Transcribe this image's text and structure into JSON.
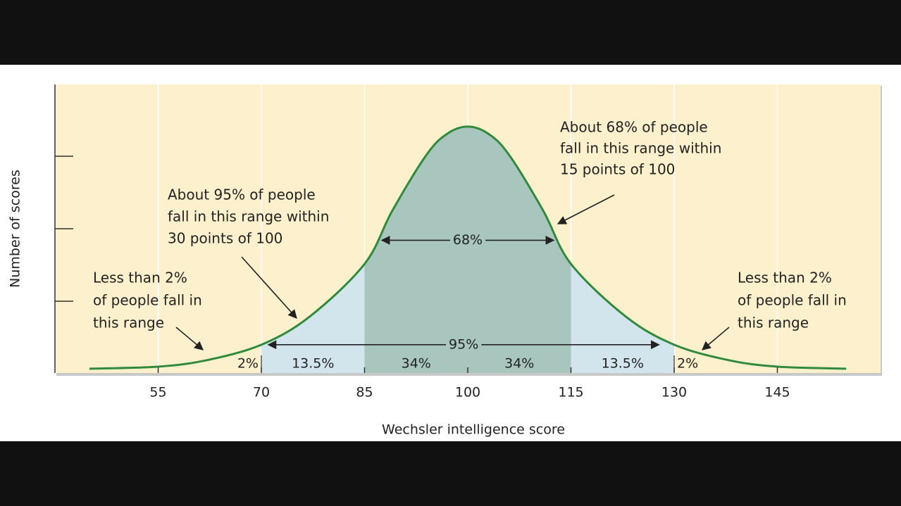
{
  "chart_data": {
    "type": "area",
    "x_label": "Wechsler intelligence score",
    "y_label": "Number of scores",
    "x": [
      45,
      55,
      62,
      70,
      77,
      85,
      89,
      94,
      97,
      100,
      103,
      106,
      111,
      115,
      123,
      130,
      138,
      145,
      155
    ],
    "values": [
      0.015,
      0.022,
      0.044,
      0.098,
      0.195,
      0.378,
      0.561,
      0.756,
      0.829,
      0.854,
      0.829,
      0.756,
      0.561,
      0.378,
      0.195,
      0.098,
      0.044,
      0.022,
      0.015
    ],
    "color": "#2f8a3c",
    "xlim": [
      40,
      160
    ],
    "ylim": [
      0,
      1
    ],
    "xticks": [
      55,
      70,
      85,
      100,
      115,
      130,
      145
    ],
    "grid": true,
    "regions": [
      {
        "from": 70,
        "to": 85,
        "color": "#d2e5ec"
      },
      {
        "from": 85,
        "to": 115,
        "color": "#a8c6bd"
      },
      {
        "from": 115,
        "to": 130,
        "color": "#d2e5ec"
      }
    ],
    "segments": [
      {
        "from": 55,
        "to": 70,
        "value": 2,
        "label": "2%"
      },
      {
        "from": 70,
        "to": 85,
        "value": 13.5,
        "label": "13.5%"
      },
      {
        "from": 85,
        "to": 100,
        "value": 34,
        "label": "34%"
      },
      {
        "from": 100,
        "to": 115,
        "value": 34,
        "label": "34%"
      },
      {
        "from": 115,
        "to": 130,
        "value": 13.5,
        "label": "13.5%"
      },
      {
        "from": 130,
        "to": 145,
        "value": 2,
        "label": "2%"
      }
    ],
    "ranges": [
      {
        "from": 87.5,
        "to": 112.5,
        "level": 0.46,
        "value": 68,
        "label": "68%"
      },
      {
        "from": 71,
        "to": 127.8,
        "level": 0.098,
        "value": 95,
        "label": "95%"
      }
    ],
    "annotations": [
      {
        "lines": [
          "About 68% of people",
          "fall in this range within",
          "15 points of 100"
        ]
      },
      {
        "lines": [
          "About 95% of people",
          "fall in this range within",
          "30 points of 100"
        ]
      },
      {
        "lines": [
          "Less than 2%",
          "of people fall in",
          "this range"
        ]
      },
      {
        "lines": [
          "Less than 2%",
          "of people fall in",
          "this range"
        ]
      }
    ]
  }
}
